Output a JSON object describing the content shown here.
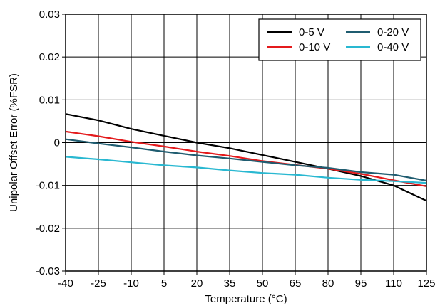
{
  "chart_data": {
    "type": "line",
    "title": "",
    "xlabel": "Temperature (°C)",
    "ylabel": "Unipolar Offset Error (%FSR)",
    "x": [
      -40,
      -25,
      -10,
      5,
      20,
      35,
      50,
      65,
      80,
      95,
      110,
      125
    ],
    "x_tick_labels": [
      "-40",
      "-25",
      "-10",
      "5",
      "20",
      "35",
      "50",
      "65",
      "80",
      "95",
      "110",
      "125"
    ],
    "y_ticks": [
      -0.03,
      -0.02,
      -0.01,
      0,
      0.01,
      0.02,
      0.03
    ],
    "y_tick_labels": [
      "-0.03",
      "-0.02",
      "-0.01",
      "0",
      "0.01",
      "0.02",
      "0.03"
    ],
    "xlim": [
      -40,
      125
    ],
    "ylim": [
      -0.03,
      0.03
    ],
    "grid": true,
    "legend_position": "top-right",
    "series": [
      {
        "name": "0-5 V",
        "color": "#000000",
        "values": [
          0.0067,
          0.0052,
          0.0032,
          0.0016,
          0.0,
          -0.0013,
          -0.0029,
          -0.0045,
          -0.0061,
          -0.0078,
          -0.01,
          -0.0136
        ]
      },
      {
        "name": "0-10 V",
        "color": "#e41a1c",
        "values": [
          0.0026,
          0.0015,
          0.0002,
          -0.0009,
          -0.0021,
          -0.0031,
          -0.0043,
          -0.0052,
          -0.0061,
          -0.0073,
          -0.0088,
          -0.0102
        ]
      },
      {
        "name": "0-20 V",
        "color": "#1f5c70",
        "values": [
          0.0008,
          -0.0002,
          -0.0011,
          -0.0021,
          -0.003,
          -0.0037,
          -0.0045,
          -0.0053,
          -0.0059,
          -0.0069,
          -0.0075,
          -0.0089
        ]
      },
      {
        "name": "0-40 V",
        "color": "#29b8d1",
        "values": [
          -0.0033,
          -0.0039,
          -0.0046,
          -0.0053,
          -0.0058,
          -0.0065,
          -0.0071,
          -0.0075,
          -0.0082,
          -0.0087,
          -0.009,
          -0.0094
        ]
      }
    ]
  }
}
